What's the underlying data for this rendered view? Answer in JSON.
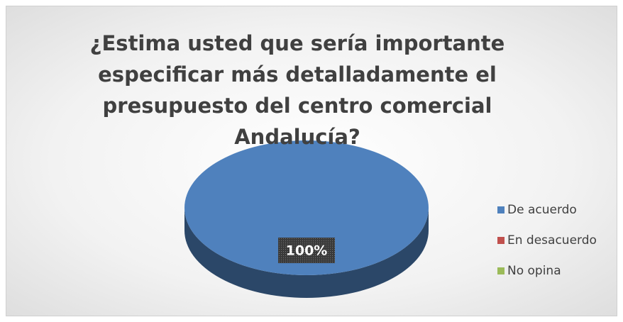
{
  "chart_data": {
    "type": "pie",
    "title": "¿Estima usted que sería importante especificar más detalladamente el presupuesto del centro comercial Andalucía?",
    "categories": [
      "De acuerdo",
      "En desacuerdo",
      "No opina"
    ],
    "values": [
      100,
      0,
      0
    ],
    "value_labels": [
      "100%",
      null,
      null
    ],
    "colors": [
      "#4f81bd",
      "#c0504d",
      "#9bbb59"
    ],
    "legend": "right"
  }
}
